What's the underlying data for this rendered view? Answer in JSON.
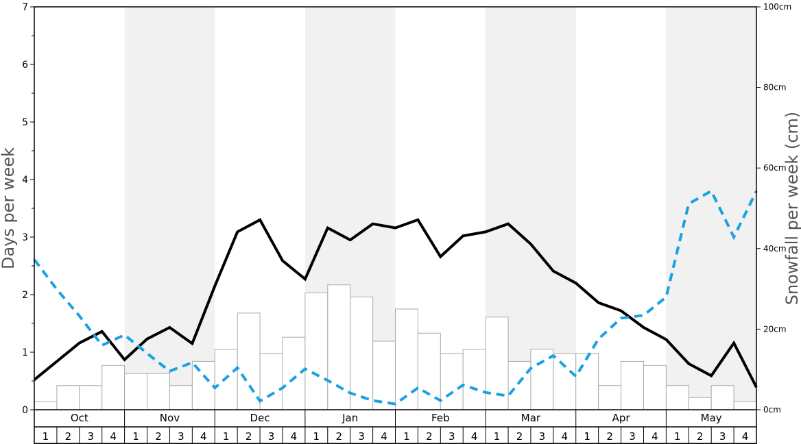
{
  "chart_data": {
    "type": "bar+line",
    "title": "",
    "ylabel_left": "Days per week",
    "ylabel_right": "Snowfall per week (cm)",
    "ylim_left": [
      0,
      7
    ],
    "ylim_right": [
      0,
      100
    ],
    "left_ticks": [
      0,
      1,
      2,
      3,
      4,
      5,
      6,
      7
    ],
    "right_ticks": [
      {
        "value": 0,
        "label": "0cm"
      },
      {
        "value": 20,
        "label": "20cm"
      },
      {
        "value": 40,
        "label": "40cm"
      },
      {
        "value": 60,
        "label": "60cm"
      },
      {
        "value": 80,
        "label": "80cm"
      },
      {
        "value": 100,
        "label": "100cm"
      }
    ],
    "months": [
      "Oct",
      "Nov",
      "Dec",
      "Jan",
      "Feb",
      "Mar",
      "Apr",
      "May"
    ],
    "weeks": [
      "1",
      "2",
      "3",
      "4"
    ],
    "background_bands": "alternating white / light grey per month",
    "series": [
      {
        "kind": "bars",
        "axis": "right",
        "values": [
          2,
          6,
          6,
          11,
          9,
          9,
          6,
          12,
          15,
          24,
          14,
          18,
          29,
          31,
          28,
          17,
          25,
          19,
          14,
          15,
          23,
          12,
          15,
          14,
          14,
          6,
          12,
          11,
          6,
          3,
          6,
          2
        ]
      },
      {
        "kind": "line",
        "style": "solid",
        "color": "#000000",
        "axis": "left",
        "values": [
          0.52,
          0.84,
          1.16,
          1.36,
          0.87,
          1.23,
          1.43,
          1.15,
          2.15,
          3.09,
          3.3,
          2.59,
          2.27,
          3.16,
          2.95,
          3.23,
          3.16,
          3.3,
          2.66,
          3.02,
          3.09,
          3.23,
          2.88,
          2.41,
          2.2,
          1.86,
          1.72,
          1.43,
          1.22,
          0.8,
          0.59,
          1.16,
          0.39
        ]
      },
      {
        "kind": "line",
        "style": "dashed",
        "color": "#1ba1e2",
        "axis": "left",
        "values": [
          2.61,
          2.09,
          1.63,
          1.12,
          1.3,
          0.98,
          0.67,
          0.82,
          0.38,
          0.73,
          0.15,
          0.38,
          0.71,
          0.51,
          0.29,
          0.16,
          0.1,
          0.38,
          0.16,
          0.43,
          0.3,
          0.24,
          0.72,
          0.94,
          0.58,
          1.23,
          1.59,
          1.64,
          1.96,
          3.58,
          3.8,
          3.0,
          3.8
        ]
      }
    ]
  }
}
